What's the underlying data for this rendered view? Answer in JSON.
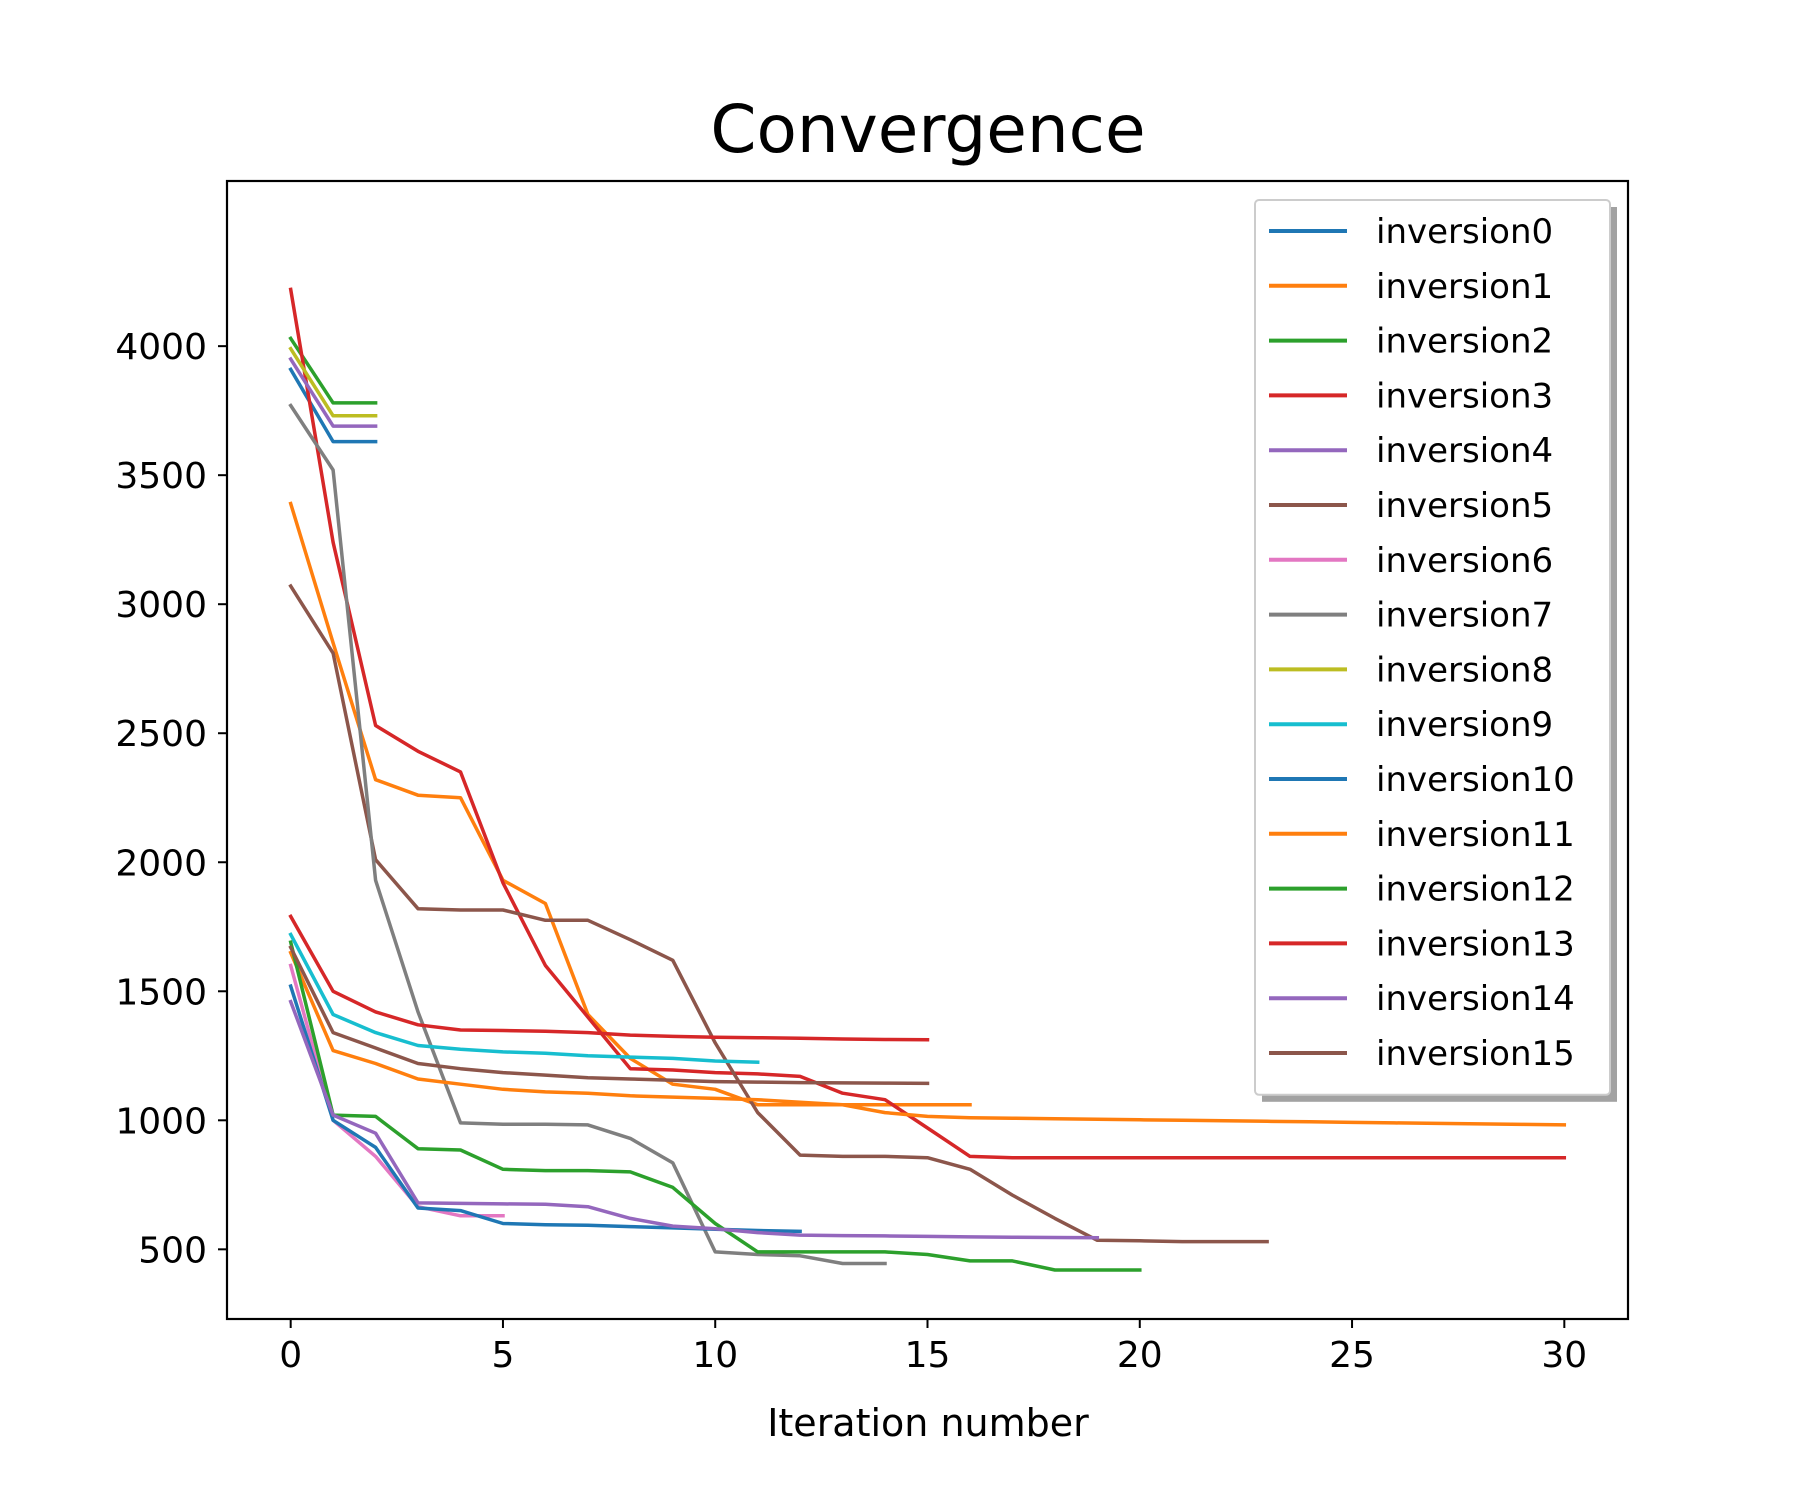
{
  "chart_data": {
    "type": "line",
    "title": "Convergence",
    "xlabel": "Iteration number",
    "ylabel": "",
    "xlim": [
      -1.5,
      31.5
    ],
    "ylim": [
      230,
      4640
    ],
    "xticks": [
      0,
      5,
      10,
      15,
      20,
      25,
      30
    ],
    "yticks": [
      500,
      1000,
      1500,
      2000,
      2500,
      3000,
      3500,
      4000
    ],
    "grid": false,
    "legend_position": "top-right",
    "series": [
      {
        "name": "inversion0",
        "color": "#1f77b4",
        "values": [
          3910,
          3630,
          3630
        ]
      },
      {
        "name": "inversion1",
        "color": "#ff7f0e",
        "values": [
          3390,
          2850,
          2320,
          2260,
          2250,
          1930,
          1840,
          1410,
          1240,
          1140,
          1120,
          1060,
          1060,
          1060,
          1060,
          1060,
          1060
        ]
      },
      {
        "name": "inversion2",
        "color": "#2ca02c",
        "values": [
          4030,
          3780,
          3780
        ]
      },
      {
        "name": "inversion3",
        "color": "#d62728",
        "values": [
          4220,
          3240,
          2530,
          2430,
          2350,
          1920,
          1600,
          1400,
          1200,
          1195,
          1185,
          1180,
          1170,
          1105,
          1080,
          970,
          860,
          855,
          855,
          855,
          855,
          855,
          855,
          855,
          855,
          855,
          855,
          855,
          855,
          855,
          855
        ]
      },
      {
        "name": "inversion4",
        "color": "#9467bd",
        "values": [
          3950,
          3690,
          3690
        ]
      },
      {
        "name": "inversion5",
        "color": "#8c564b",
        "values": [
          3070,
          2810,
          2010,
          1820,
          1815,
          1815,
          1775,
          1775,
          1700,
          1620,
          1300,
          1030,
          865,
          860,
          860,
          855,
          810,
          710,
          620,
          535,
          533,
          530,
          530,
          530
        ]
      },
      {
        "name": "inversion6",
        "color": "#e377c2",
        "values": [
          1600,
          1000,
          860,
          665,
          630,
          630
        ]
      },
      {
        "name": "inversion7",
        "color": "#7f7f7f",
        "values": [
          3770,
          3520,
          1930,
          1420,
          990,
          985,
          985,
          982,
          930,
          835,
          490,
          480,
          475,
          445,
          445
        ]
      },
      {
        "name": "inversion8",
        "color": "#bcbd22",
        "values": [
          3990,
          3730,
          3730
        ]
      },
      {
        "name": "inversion9",
        "color": "#17becf",
        "values": [
          1720,
          1410,
          1340,
          1290,
          1275,
          1265,
          1260,
          1250,
          1245,
          1240,
          1230,
          1225
        ]
      },
      {
        "name": "inversion10",
        "color": "#1f77b4",
        "values": [
          1520,
          1000,
          895,
          660,
          650,
          600,
          595,
          593,
          588,
          583,
          578,
          573,
          570
        ]
      },
      {
        "name": "inversion11",
        "color": "#ff7f0e",
        "values": [
          1650,
          1270,
          1220,
          1160,
          1140,
          1120,
          1110,
          1105,
          1095,
          1090,
          1085,
          1080,
          1070,
          1060,
          1030,
          1015,
          1010,
          1008,
          1006,
          1004,
          1002,
          1000,
          998,
          996,
          994,
          992,
          990,
          988,
          986,
          984,
          982
        ]
      },
      {
        "name": "inversion12",
        "color": "#2ca02c",
        "values": [
          1690,
          1020,
          1015,
          890,
          885,
          810,
          805,
          805,
          800,
          740,
          600,
          490,
          490,
          490,
          490,
          480,
          455,
          455,
          420,
          420,
          420
        ]
      },
      {
        "name": "inversion13",
        "color": "#d62728",
        "values": [
          1790,
          1500,
          1420,
          1370,
          1350,
          1348,
          1345,
          1340,
          1330,
          1325,
          1322,
          1320,
          1318,
          1315,
          1313,
          1312
        ]
      },
      {
        "name": "inversion14",
        "color": "#9467bd",
        "values": [
          1460,
          1020,
          950,
          680,
          678,
          676,
          675,
          665,
          620,
          590,
          580,
          565,
          555,
          553,
          552,
          550,
          548,
          547,
          546,
          545
        ]
      },
      {
        "name": "inversion15",
        "color": "#8c564b",
        "values": [
          1670,
          1340,
          1280,
          1220,
          1200,
          1185,
          1175,
          1165,
          1160,
          1155,
          1150,
          1148,
          1146,
          1145,
          1144,
          1143
        ]
      }
    ]
  }
}
